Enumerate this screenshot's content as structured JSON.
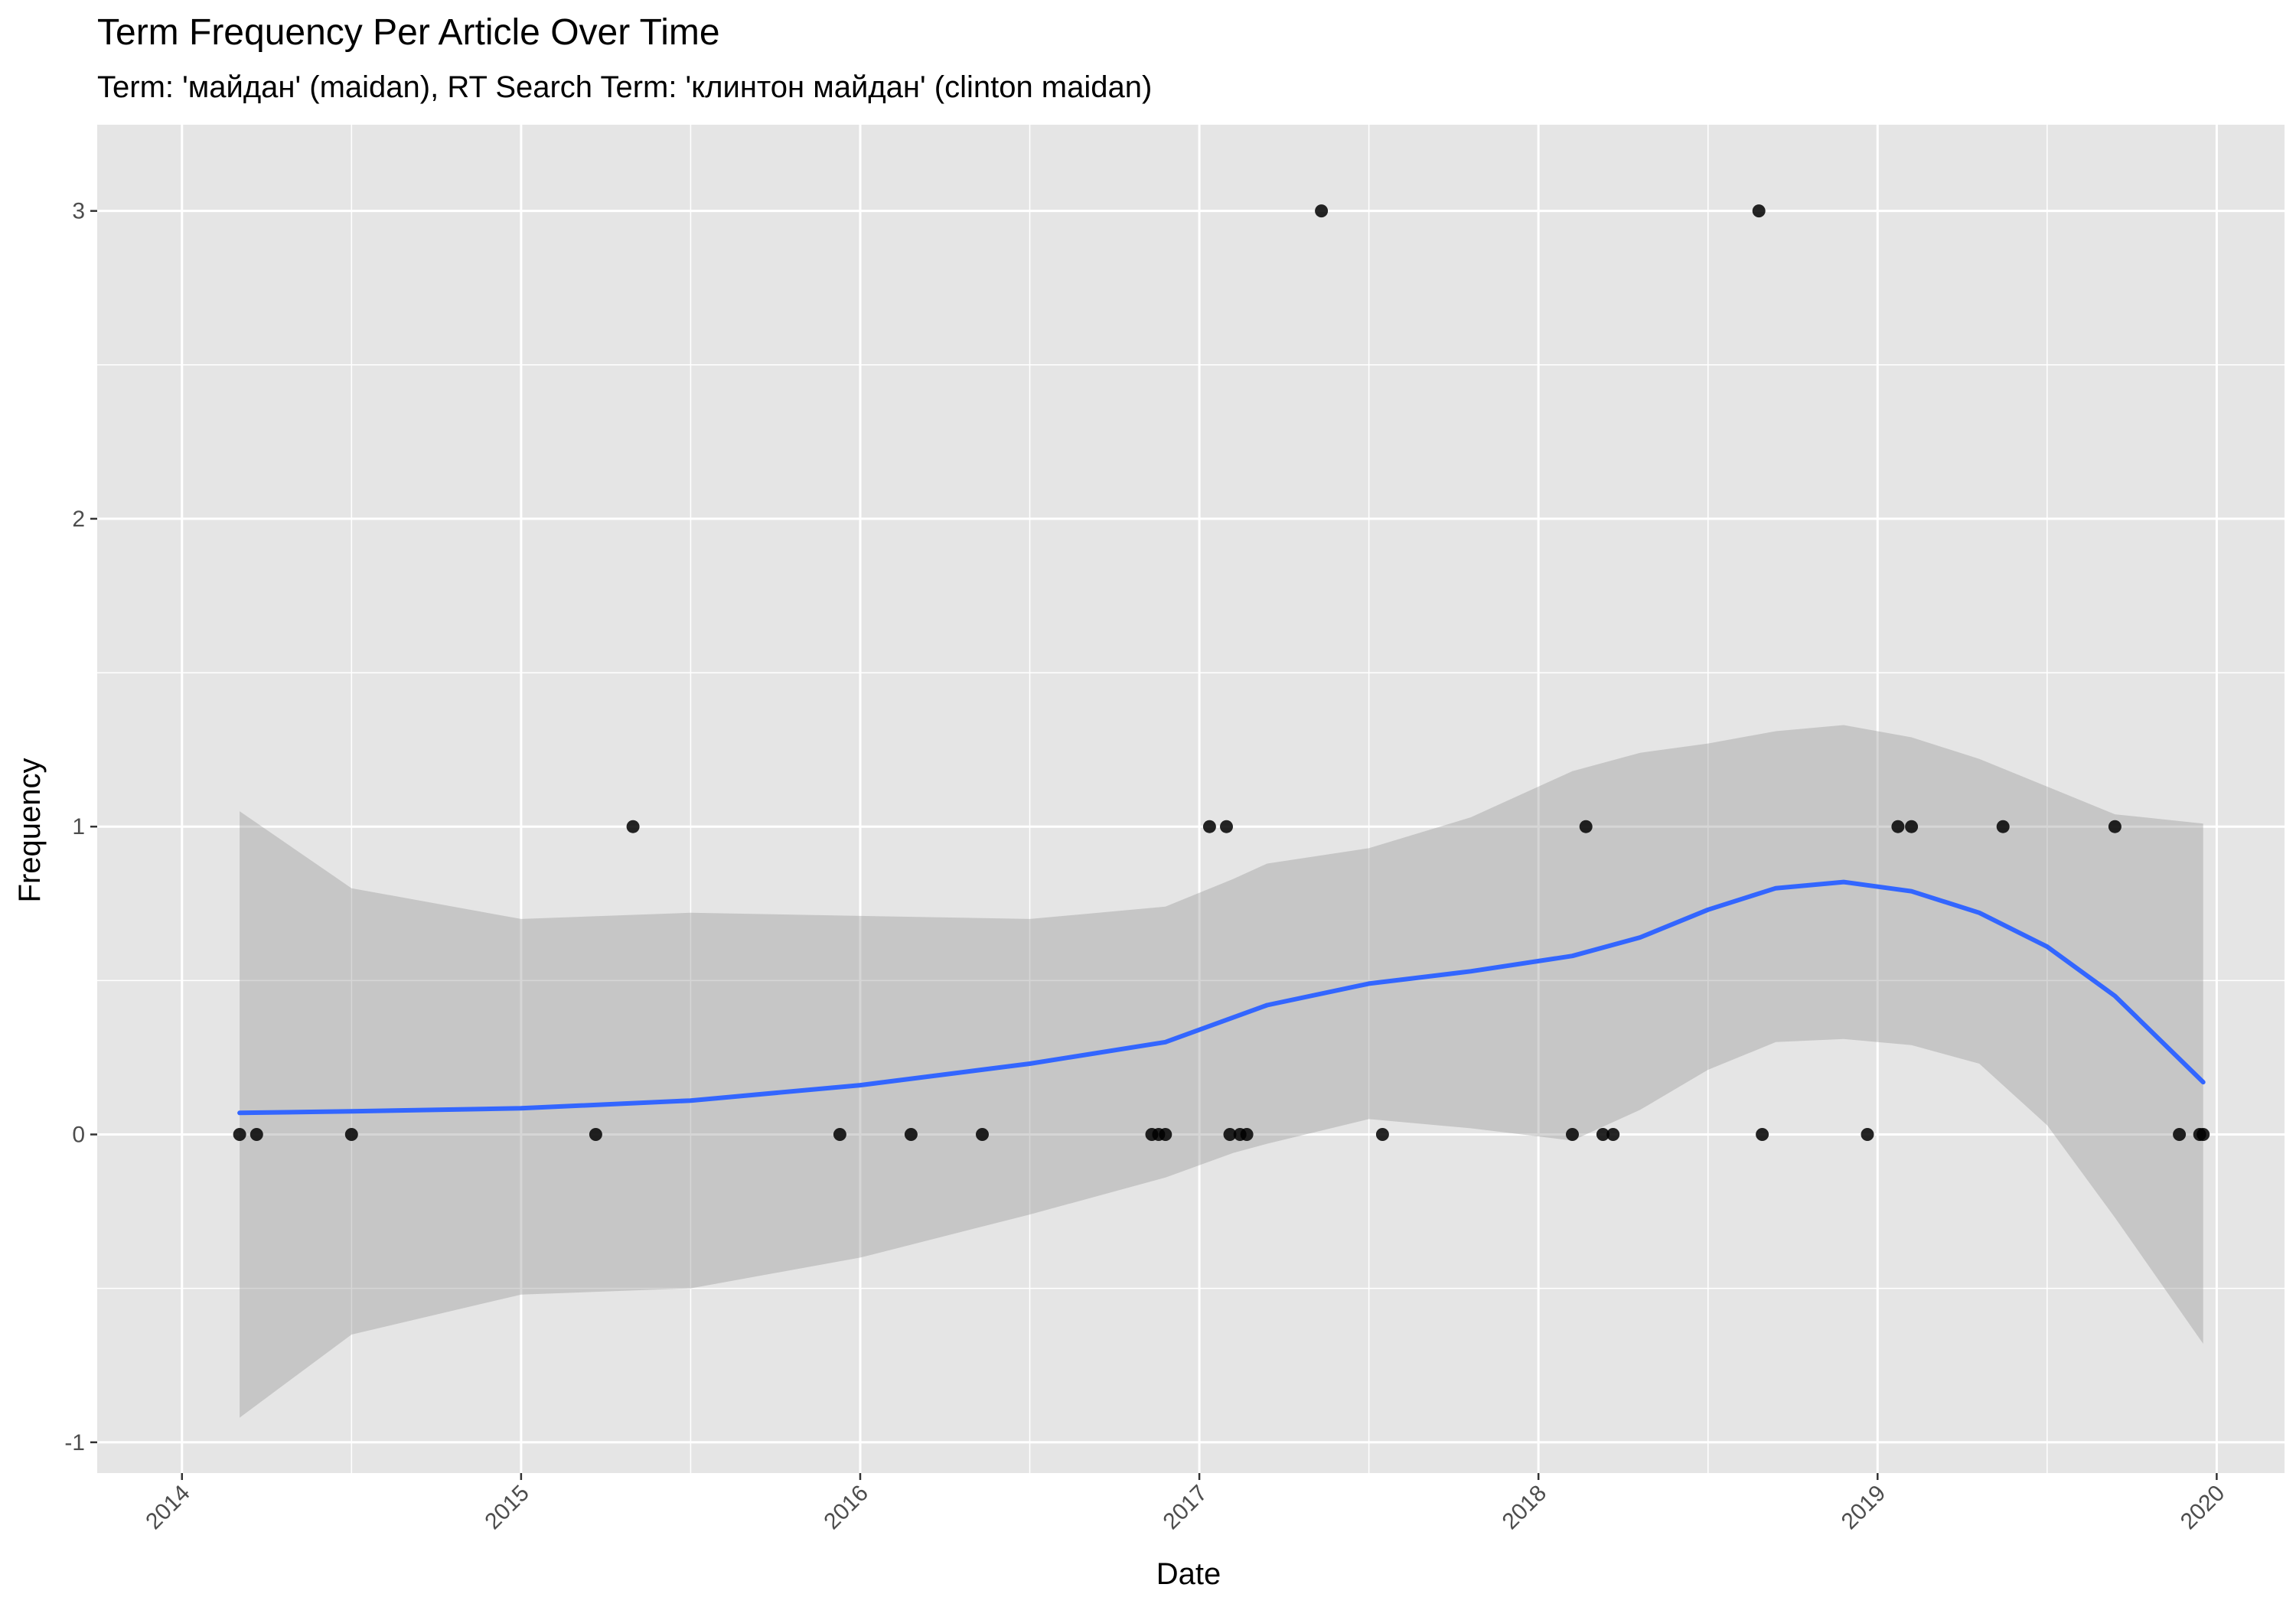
{
  "chart_data": {
    "type": "scatter",
    "title": "Term Frequency Per Article Over Time",
    "subtitle": "Term: 'майдан' (maidan), RT Search Term: 'клинтон майдан' (clinton maidan)",
    "xlabel": "Date",
    "ylabel": "Frequency",
    "xlim": [
      2013.75,
      2020.2
    ],
    "ylim": [
      -1.1,
      3.28
    ],
    "x_ticks": [
      "2014",
      "2015",
      "2016",
      "2017",
      "2018",
      "2019",
      "2020"
    ],
    "y_ticks": [
      "-1",
      "0",
      "1",
      "2",
      "3"
    ],
    "grid": true,
    "legend": "none",
    "colors": {
      "panel_background": "#e5e5e5",
      "grid_line": "#ffffff",
      "point": "#000000",
      "smooth_line": "#3366ff",
      "confidence_band": "#bfbfbf"
    },
    "points": {
      "x": [
        2014.17,
        2014.22,
        2014.5,
        2015.22,
        2015.33,
        2015.94,
        2016.15,
        2016.36,
        2016.86,
        2016.88,
        2016.9,
        2017.03,
        2017.08,
        2017.09,
        2017.12,
        2017.14,
        2017.36,
        2017.54,
        2018.1,
        2018.14,
        2018.19,
        2018.22,
        2018.65,
        2018.66,
        2018.97,
        2019.06,
        2019.1,
        2019.37,
        2019.7,
        2019.89,
        2019.95,
        2019.96
      ],
      "y": [
        0,
        0,
        0,
        0,
        1,
        0,
        0,
        0,
        0,
        0,
        0,
        1,
        1,
        0,
        0,
        0,
        3,
        0,
        0,
        1,
        0,
        0,
        3,
        0,
        0,
        1,
        1,
        1,
        1,
        0,
        0,
        0
      ]
    },
    "smooth": {
      "method": "loess",
      "x": [
        2014.17,
        2014.5,
        2015.0,
        2015.5,
        2016.0,
        2016.5,
        2016.9,
        2017.1,
        2017.2,
        2017.5,
        2017.8,
        2018.1,
        2018.3,
        2018.5,
        2018.7,
        2018.9,
        2019.1,
        2019.3,
        2019.5,
        2019.7,
        2019.96
      ],
      "y": [
        0.07,
        0.075,
        0.085,
        0.11,
        0.16,
        0.23,
        0.3,
        0.38,
        0.42,
        0.49,
        0.53,
        0.58,
        0.64,
        0.73,
        0.8,
        0.82,
        0.79,
        0.72,
        0.61,
        0.45,
        0.17
      ],
      "ci_lower": [
        -0.92,
        -0.65,
        -0.52,
        -0.5,
        -0.4,
        -0.26,
        -0.14,
        -0.06,
        -0.03,
        0.05,
        0.02,
        -0.02,
        0.08,
        0.21,
        0.3,
        0.31,
        0.29,
        0.23,
        0.03,
        -0.27,
        -0.68
      ],
      "ci_upper": [
        1.05,
        0.8,
        0.7,
        0.72,
        0.71,
        0.7,
        0.74,
        0.83,
        0.88,
        0.93,
        1.03,
        1.18,
        1.24,
        1.27,
        1.31,
        1.33,
        1.29,
        1.22,
        1.13,
        1.04,
        1.01
      ]
    }
  }
}
